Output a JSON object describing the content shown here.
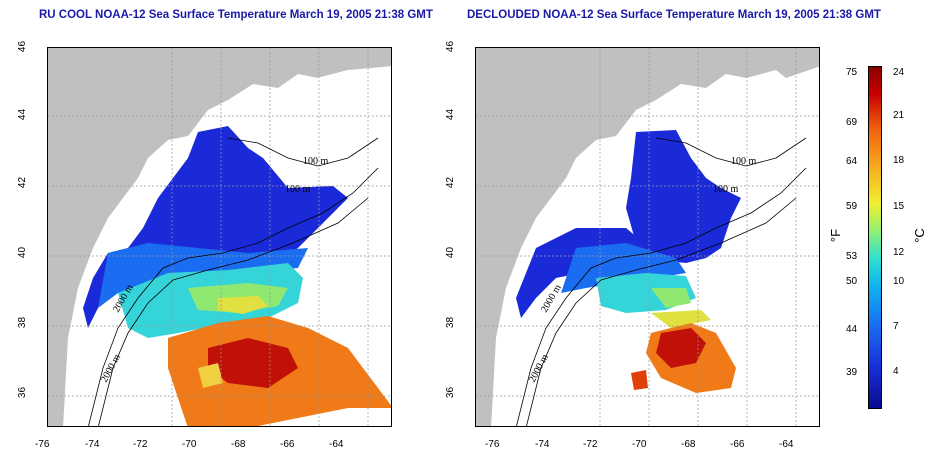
{
  "panels": [
    {
      "title": "RU COOL NOAA-12 Sea Surface Temperature March 19, 2005 21:38 GMT",
      "contour_labels": [
        "100 m",
        "100 m",
        "2000 m",
        "2000 m"
      ],
      "variant": "full"
    },
    {
      "title": "DECLOUDED NOAA-12 Sea Surface Temperature March 19, 2005 21:38 GMT",
      "contour_labels": [
        "100 m",
        "100 m",
        "2000 m",
        "2000 m"
      ],
      "variant": "declouded"
    }
  ],
  "axes": {
    "x_ticks": [
      "-76",
      "-74",
      "-72",
      "-70",
      "-68",
      "-66",
      "-64"
    ],
    "y_ticks": [
      "36",
      "38",
      "40",
      "42",
      "44",
      "46"
    ]
  },
  "colorbar": {
    "fahrenheit_label": "°F",
    "celsius_label": "°C",
    "fahrenheit_ticks": [
      "75",
      "69",
      "64",
      "59",
      "53",
      "50",
      "44",
      "39"
    ],
    "celsius_ticks": [
      "24",
      "21",
      "18",
      "15",
      "12",
      "10",
      "7",
      "4"
    ]
  },
  "colors": {
    "land": "#c0c0c0",
    "cold": "#1a2ad8",
    "warm": "#e0400a",
    "title": "#1a1aa6"
  }
}
